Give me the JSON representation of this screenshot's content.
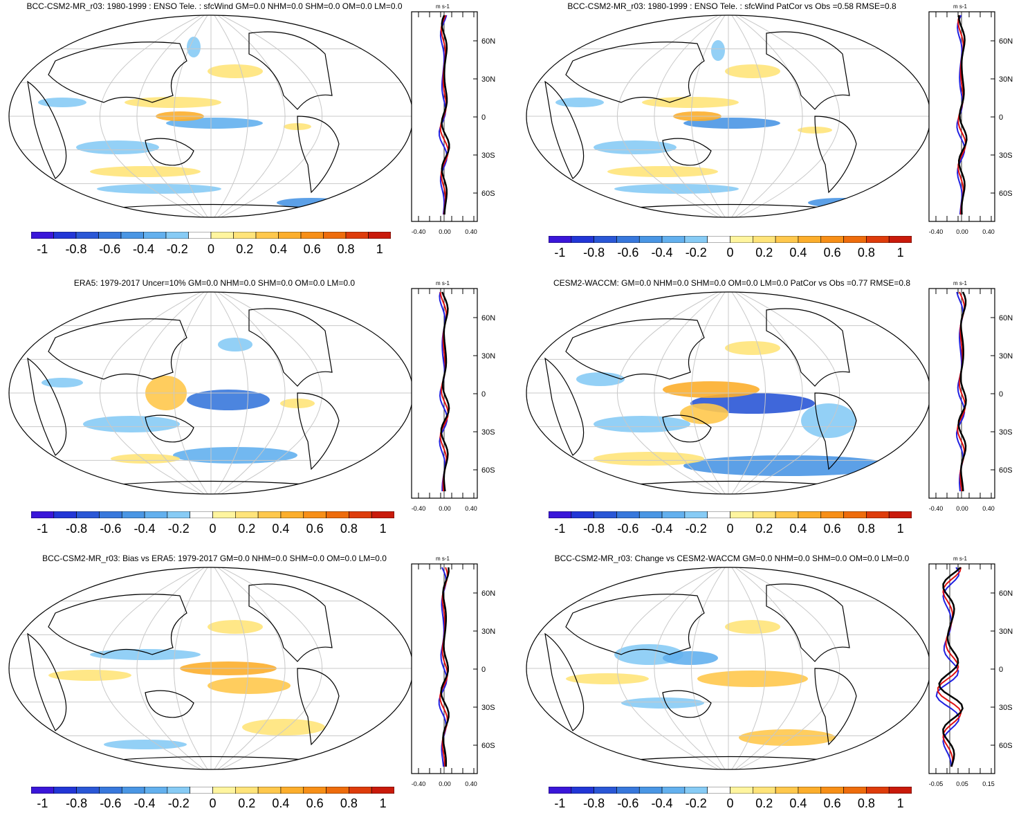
{
  "colorbar": {
    "labels": [
      "-1",
      "-0.8",
      "-0.6",
      "-0.4",
      "-0.2",
      "0",
      "0.2",
      "0.4",
      "0.6",
      "0.8",
      "1"
    ],
    "colors": [
      "#3a16d9",
      "#2236d6",
      "#2a57d6",
      "#3878dc",
      "#4a96e4",
      "#63b0ee",
      "#87cbf5",
      "#ffffff",
      "#fff59f",
      "#ffe47a",
      "#ffc84d",
      "#fcae2c",
      "#f78f17",
      "#ee6c0c",
      "#de3c0b",
      "#c91a0b"
    ]
  },
  "panels": [
    {
      "title": "BCC-CSM2-MR_r03: 1980-1999 : ENSO Tele. : sfcWind GM=0.0 NHM=0.0 SHM=0.0 OM=0.0 LM=0.0",
      "profile": {
        "unit": "m s-1",
        "lat_ticks": [
          "60N",
          "30N",
          "0",
          "30S",
          "60S"
        ],
        "x_ticks": [
          "-0.40",
          "0.00",
          "0.40"
        ]
      }
    },
    {
      "title": "BCC-CSM2-MR_r03: 1980-1999 : ENSO Tele. : sfcWind PatCor vs Obs =0.58 RMSE=0.8",
      "profile": {
        "unit": "m s-1",
        "lat_ticks": [
          "60N",
          "30N",
          "0",
          "30S",
          "60S"
        ],
        "x_ticks": [
          "-0.40",
          "0.00",
          "0.40"
        ]
      }
    },
    {
      "title": "ERA5: 1979-2017 Uncer=10% GM=0.0 NHM=0.0 SHM=0.0 OM=0.0 LM=0.0",
      "profile": {
        "unit": "m s-1",
        "lat_ticks": [
          "60N",
          "30N",
          "0",
          "30S",
          "60S"
        ],
        "x_ticks": [
          "-0.40",
          "0.00",
          "0.40"
        ]
      }
    },
    {
      "title": "CESM2-WACCM: GM=0.0 NHM=0.0 SHM=0.0 OM=0.0 LM=0.0 PatCor vs Obs =0.77 RMSE=0.8",
      "profile": {
        "unit": "m s-1",
        "lat_ticks": [
          "60N",
          "30N",
          "0",
          "30S",
          "60S"
        ],
        "x_ticks": [
          "-0.40",
          "0.00",
          "0.40"
        ]
      }
    },
    {
      "title": "BCC-CSM2-MR_r03: Bias vs ERA5: 1979-2017 GM=0.0 NHM=0.0 SHM=0.0 OM=0.0 LM=0.0",
      "profile": {
        "unit": "m s-1",
        "lat_ticks": [
          "60N",
          "30N",
          "0",
          "30S",
          "60S"
        ],
        "x_ticks": [
          "-0.40",
          "0.00",
          "0.40"
        ]
      }
    },
    {
      "title": "BCC-CSM2-MR_r03: Change vs CESM2-WACCM GM=0.0 NHM=0.0 SHM=0.0 OM=0.0 LM=0.0",
      "profile": {
        "unit": "m s-1",
        "lat_ticks": [
          "60N",
          "30N",
          "0",
          "30S",
          "60S"
        ],
        "x_ticks": [
          "-0.05",
          "0.05",
          "0.15"
        ]
      }
    }
  ]
}
